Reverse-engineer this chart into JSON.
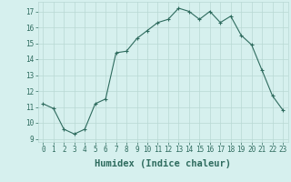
{
  "x": [
    0,
    1,
    2,
    3,
    4,
    5,
    6,
    7,
    8,
    9,
    10,
    11,
    12,
    13,
    14,
    15,
    16,
    17,
    18,
    19,
    20,
    21,
    22,
    23
  ],
  "y": [
    11.2,
    10.9,
    9.6,
    9.3,
    9.6,
    11.2,
    11.5,
    14.4,
    14.5,
    15.3,
    15.8,
    16.3,
    16.5,
    17.2,
    17.0,
    16.5,
    17.0,
    16.3,
    16.7,
    15.5,
    14.9,
    13.3,
    11.7,
    10.8
  ],
  "line_color": "#2e6b5e",
  "marker": "+",
  "marker_size": 3,
  "bg_color": "#d6f0ee",
  "grid_color": "#b8d8d4",
  "xlabel": "Humidex (Indice chaleur)",
  "ylim": [
    8.8,
    17.6
  ],
  "xlim": [
    -0.5,
    23.5
  ],
  "yticks": [
    9,
    10,
    11,
    12,
    13,
    14,
    15,
    16,
    17
  ],
  "xticks": [
    0,
    1,
    2,
    3,
    4,
    5,
    6,
    7,
    8,
    9,
    10,
    11,
    12,
    13,
    14,
    15,
    16,
    17,
    18,
    19,
    20,
    21,
    22,
    23
  ],
  "tick_label_size": 5.5,
  "xlabel_size": 7.5,
  "line_color_hex": "#2e6b5e"
}
